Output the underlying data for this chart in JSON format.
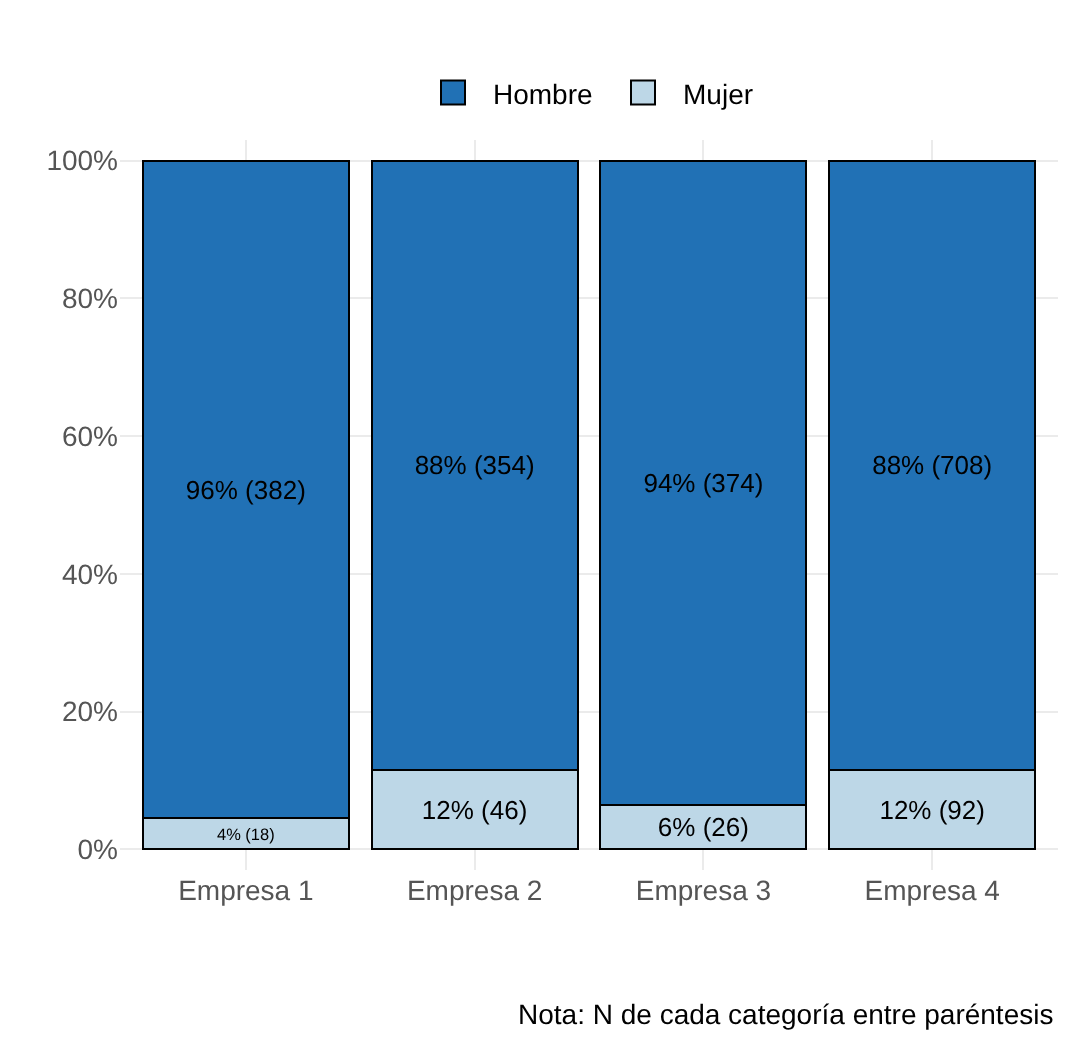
{
  "chart_data": {
    "type": "bar",
    "stacked": true,
    "categories": [
      "Empresa 1",
      "Empresa 2",
      "Empresa 3",
      "Empresa 4"
    ],
    "series": [
      {
        "name": "Mujer",
        "color": "#bdd7e7",
        "values": [
          4.5,
          11.5,
          6.5,
          11.5
        ],
        "value_labels": [
          "4% (18)",
          "12% (46)",
          "6% (26)",
          "12% (92)"
        ]
      },
      {
        "name": "Hombre",
        "color": "#2171b5",
        "values": [
          95.5,
          88.5,
          93.5,
          88.5
        ],
        "value_labels": [
          "96% (382)",
          "88% (354)",
          "94% (374)",
          "88% (708)"
        ]
      }
    ],
    "ylim": [
      -3,
      103
    ],
    "yticks": [
      {
        "value": 0,
        "label": "0%"
      },
      {
        "value": 20,
        "label": "20%"
      },
      {
        "value": 40,
        "label": "40%"
      },
      {
        "value": 60,
        "label": "60%"
      },
      {
        "value": 80,
        "label": "80%"
      },
      {
        "value": 100,
        "label": "100%"
      }
    ],
    "grid": true,
    "legend": "top",
    "annotations": [
      "Nota: N de cada categoría entre paréntesis"
    ]
  }
}
